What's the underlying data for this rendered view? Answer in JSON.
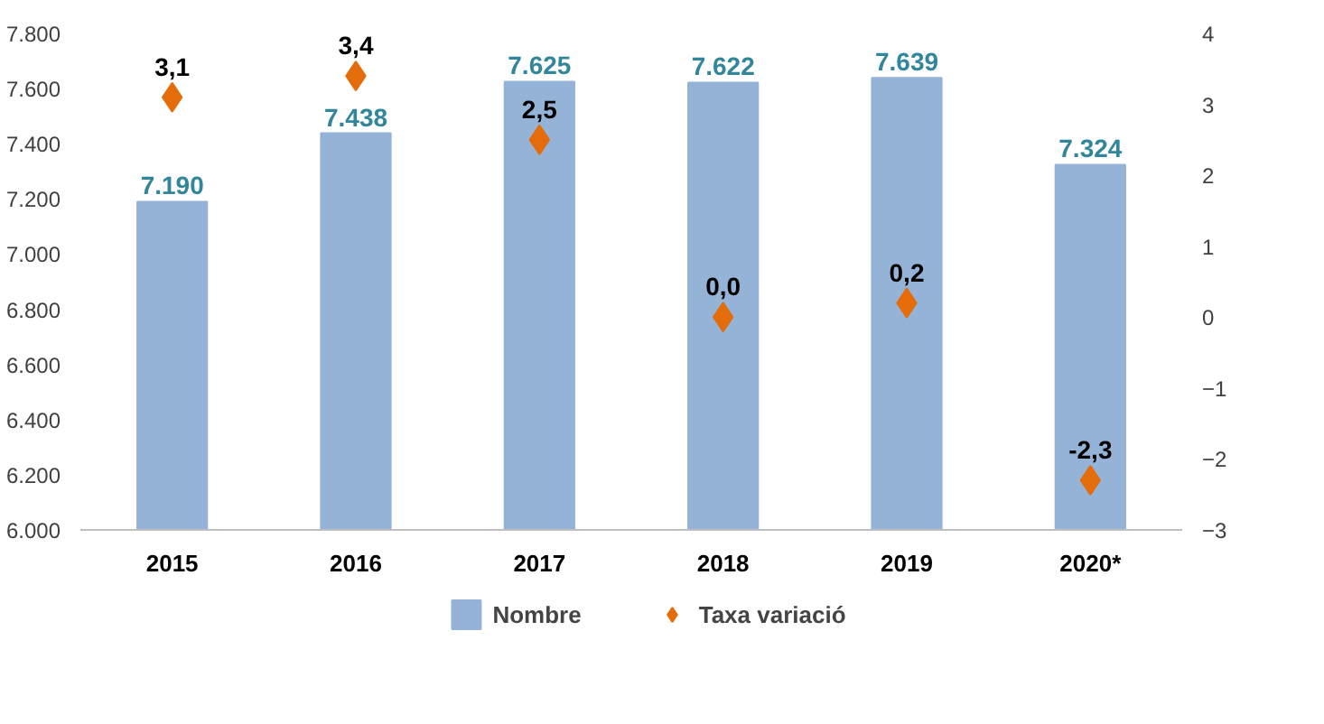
{
  "chart_data": {
    "type": "bar",
    "categories": [
      "2015",
      "2016",
      "2017",
      "2018",
      "2019",
      "2020*"
    ],
    "series": [
      {
        "name": "Nombre",
        "color": "#95b3d7",
        "values": [
          7190,
          7438,
          7625,
          7622,
          7639,
          7324
        ],
        "value_labels": [
          "7.190",
          "7.438",
          "7.625",
          "7.622",
          "7.639",
          "7.324"
        ]
      },
      {
        "name": "Taxa variació",
        "type": "scatter",
        "axis": "y2",
        "marker": "diamond",
        "color": "#e46c0a",
        "values": [
          3.1,
          3.4,
          2.5,
          0.0,
          0.2,
          -2.3
        ],
        "value_labels": [
          "3,1",
          "3,4",
          "2,5",
          "0,0",
          "0,2",
          "-2,3"
        ]
      }
    ],
    "ylim": [
      6000,
      7800
    ],
    "yticks": [
      {
        "value": 6000,
        "label": "6.000"
      },
      {
        "value": 6200,
        "label": "6.200"
      },
      {
        "value": 6400,
        "label": "6.400"
      },
      {
        "value": 6600,
        "label": "6.600"
      },
      {
        "value": 6800,
        "label": "6.800"
      },
      {
        "value": 7000,
        "label": "7.000"
      },
      {
        "value": 7200,
        "label": "7.200"
      },
      {
        "value": 7400,
        "label": "7.400"
      },
      {
        "value": 7600,
        "label": "7.600"
      },
      {
        "value": 7800,
        "label": "7.800"
      }
    ],
    "y2lim": [
      -3,
      4
    ],
    "y2ticks": [
      -3,
      -2,
      -1,
      0,
      1,
      2,
      3,
      4
    ],
    "grid": false,
    "legend": "bottom"
  }
}
